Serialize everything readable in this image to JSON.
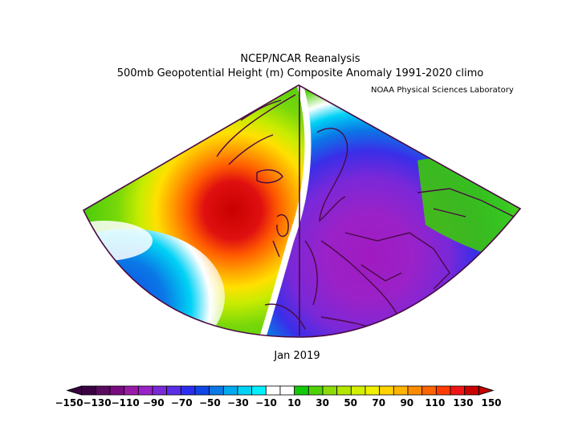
{
  "header": {
    "title": "NCEP/NCAR Reanalysis",
    "subtitle": "500mb Geopotential Height (m) Composite Anomaly 1991-2020 climo",
    "credit": "NOAA Physical Sciences Laboratory"
  },
  "date_label": "Jan 2019",
  "map": {
    "region": "North Atlantic / Europe",
    "variable": "500mb geopotential height anomaly",
    "units": "m",
    "features": [
      {
        "name": "positive-anomaly-max",
        "location": "south of Iceland",
        "value": 150
      },
      {
        "name": "negative-anomaly-trough",
        "location": "central Europe to Mediterranean",
        "value": -120
      }
    ]
  },
  "legend": {
    "min": -150,
    "max": 150,
    "step": 10,
    "labels": [
      "-150",
      "-130",
      "-110",
      "-90",
      "-70",
      "-50",
      "-30",
      "-10",
      "10",
      "30",
      "50",
      "70",
      "90",
      "110",
      "130",
      "150"
    ],
    "colors": [
      "#3a0042",
      "#5a0a5e",
      "#7a0a80",
      "#9a1aa8",
      "#9a22c8",
      "#7a28d8",
      "#5a2ee6",
      "#2a2ef0",
      "#0f46e6",
      "#0a78e6",
      "#00aaf0",
      "#00d2f5",
      "#00f0ff",
      "#ffffff",
      "#ffffff",
      "#14c80a",
      "#50d20a",
      "#8cdc0a",
      "#b4e600",
      "#d2f000",
      "#f0f000",
      "#ffd200",
      "#ffb400",
      "#ff8c00",
      "#ff6400",
      "#ff3c00",
      "#f01414",
      "#c80000"
    ]
  }
}
